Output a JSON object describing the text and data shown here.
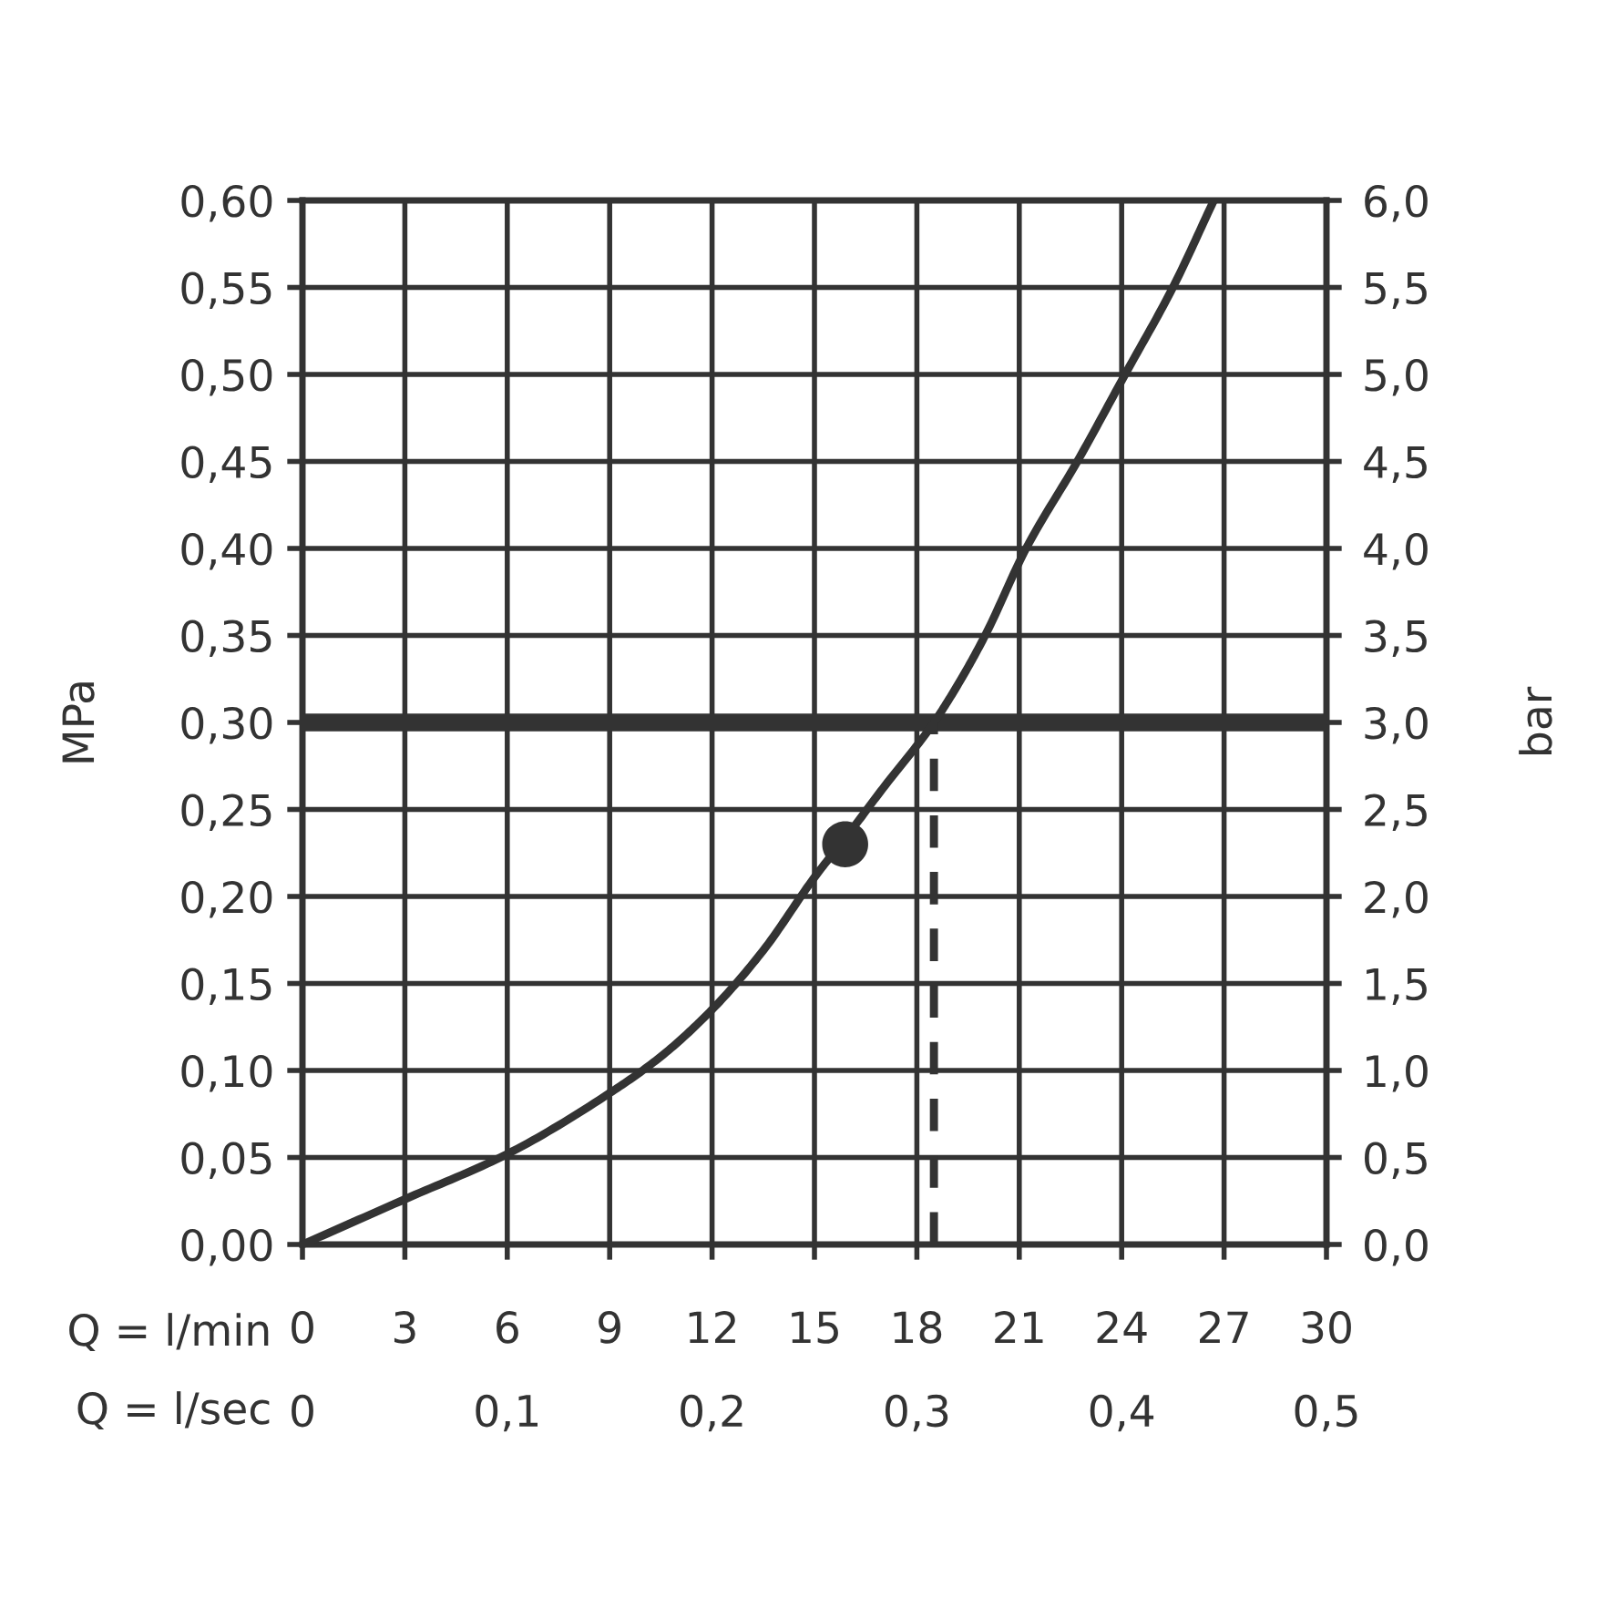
{
  "chart_data": {
    "type": "line",
    "xlabel": "Q = l/min",
    "x2label": "Q = l/sec",
    "ylabel": "MPa",
    "y2label": "bar",
    "xlim": [
      0,
      30
    ],
    "xticks": [
      0,
      3,
      6,
      9,
      12,
      15,
      18,
      21,
      24,
      27,
      30
    ],
    "x2lim": [
      0,
      0.5
    ],
    "x2ticks": [
      0,
      {
        "value": 0.1,
        "label": "0,1"
      },
      {
        "value": 0.2,
        "label": "0,2"
      },
      {
        "value": 0.3,
        "label": "0,3"
      },
      {
        "value": 0.4,
        "label": "0,4"
      },
      {
        "value": 0.5,
        "label": "0,5"
      }
    ],
    "ylim": [
      0,
      0.6
    ],
    "yticks": [
      {
        "value": 0,
        "label": "0,00"
      },
      {
        "value": 0.05,
        "label": "0,05"
      },
      {
        "value": 0.1,
        "label": "0,10"
      },
      {
        "value": 0.15,
        "label": "0,15"
      },
      {
        "value": 0.2,
        "label": "0,20"
      },
      {
        "value": 0.25,
        "label": "0,25"
      },
      {
        "value": 0.3,
        "label": "0,30"
      },
      {
        "value": 0.35,
        "label": "0,35"
      },
      {
        "value": 0.4,
        "label": "0,40"
      },
      {
        "value": 0.45,
        "label": "0,45"
      },
      {
        "value": 0.5,
        "label": "0,50"
      },
      {
        "value": 0.55,
        "label": "0,55"
      },
      {
        "value": 0.6,
        "label": "0,60"
      }
    ],
    "y2lim": [
      0,
      6
    ],
    "y2ticks": [
      {
        "value": 0,
        "label": "0,0"
      },
      {
        "value": 0.5,
        "label": "0,5"
      },
      {
        "value": 1,
        "label": "1,0"
      },
      {
        "value": 1.5,
        "label": "1,5"
      },
      {
        "value": 2,
        "label": "2,0"
      },
      {
        "value": 2.5,
        "label": "2,5"
      },
      {
        "value": 3,
        "label": "3,0"
      },
      {
        "value": 3.5,
        "label": "3,5"
      },
      {
        "value": 4,
        "label": "4,0"
      },
      {
        "value": 4.5,
        "label": "4,5"
      },
      {
        "value": 5,
        "label": "5,0"
      },
      {
        "value": 5.5,
        "label": "5,5"
      },
      {
        "value": 6,
        "label": "6,0"
      }
    ],
    "grid": true,
    "series": [
      {
        "color": "#333333",
        "x": [
          0,
          3,
          6,
          9,
          10.5,
          12,
          13.5,
          15,
          16,
          17,
          18.5,
          19.3,
          20,
          21.2,
          22.7,
          24.1,
          25.5,
          26.7
        ],
        "values": [
          0,
          0.026,
          0.052,
          0.087,
          0.108,
          0.135,
          0.169,
          0.211,
          0.236,
          0.262,
          0.3,
          0.325,
          0.35,
          0.4,
          0.45,
          0.5,
          0.55,
          0.6
        ]
      },
      {
        "line_style": "dashed",
        "color": "#333333",
        "x": [
          18.5,
          18.5
        ],
        "values": [
          0,
          0.3
        ]
      },
      {
        "type": "scatter",
        "marker": "circle",
        "color": "#333333",
        "x": [
          15.9
        ],
        "values": [
          0.23
        ]
      }
    ],
    "ref_lines": [
      {
        "axis": "y",
        "value": 0.3,
        "color": "#333333"
      }
    ]
  }
}
